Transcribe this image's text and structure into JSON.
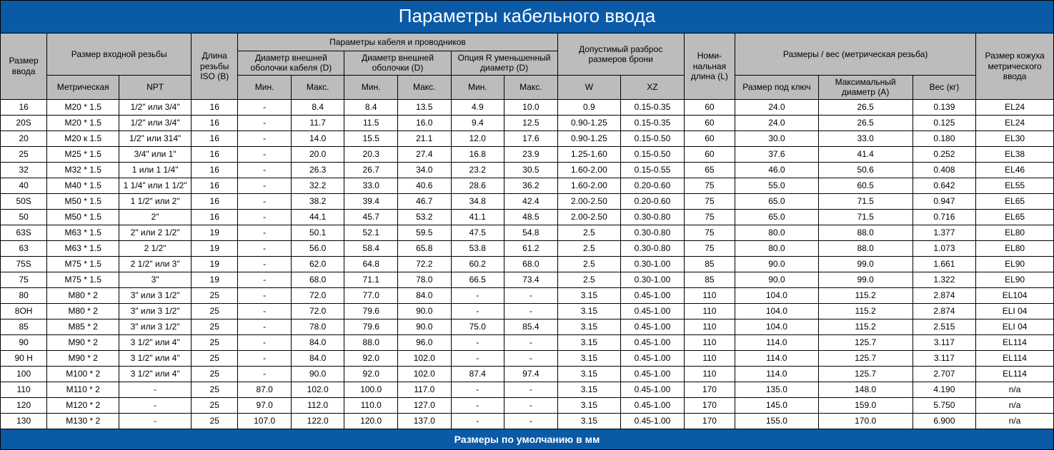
{
  "title": "Параметры кабельного ввода",
  "footer": "Размеры по умолчанию в мм",
  "colors": {
    "banner_bg": "#0b5aa8",
    "banner_text": "#ffffff",
    "header_bg": "#bcbcbc",
    "cell_bg": "#ffffff",
    "border": "#000000"
  },
  "col_widths_pct": [
    4.2,
    6.5,
    6.5,
    4.2,
    4.8,
    4.8,
    4.8,
    4.8,
    4.8,
    4.8,
    5.7,
    5.7,
    4.6,
    7.5,
    8.5,
    5.7,
    7.0
  ],
  "headers": {
    "size": "Размер ввода",
    "thread_size": "Размер входной резьбы",
    "thread_len": "Длина резьбы ISO (B)",
    "cable_params": "Параметры кабеля и проводников",
    "armor_range": "Допустимый разброс размеров брони",
    "nominal_len": "Номи-нальная длина (L)",
    "dims_weight": "Размеры / вес (метрическая резьба)",
    "casing_size": "Размер кожуха метрического ввода",
    "metric": "Метрическая",
    "npt": "NPT",
    "outer_d1": "Диаметр внешней оболочки кабеля (D)",
    "outer_d2": "Диаметр внешней оболочки (D)",
    "option_r": "Опция R уменьшенный диаметр (D)",
    "min": "Мин.",
    "max": "Макс.",
    "w": "W",
    "xz": "XZ",
    "key_size": "Размер под ключ",
    "max_dia": "Максимальный диаметр (A)",
    "weight": "Вес (кг)"
  },
  "rows": [
    [
      "16",
      "M20 * 1.5",
      "1/2\" или 3/4\"",
      "16",
      "-",
      "8.4",
      "8.4",
      "13.5",
      "4.9",
      "10.0",
      "0.9",
      "0.15-0.35",
      "60",
      "24.0",
      "26.5",
      "0.139",
      "EL24"
    ],
    [
      "20S",
      "M20 * 1.5",
      "1/2\" или 3/4\"",
      "16",
      "-",
      "11.7",
      "11.5",
      "16.0",
      "9.4",
      "12.5",
      "0.90-1.25",
      "0.15-0.35",
      "60",
      "24.0",
      "26.5",
      "0.125",
      "EL24"
    ],
    [
      "20",
      "M20 к 1.5",
      "1/2\" или 314\"",
      "16",
      "-",
      "14.0",
      "15.5",
      "21.1",
      "12.0",
      "17.6",
      "0.90-1.25",
      "0.15-0.50",
      "60",
      "30.0",
      "33.0",
      "0.180",
      "EL30"
    ],
    [
      "25",
      "M25 * 1.5",
      "3/4\" или 1\"",
      "16",
      "-",
      "20.0",
      "20.3",
      "27.4",
      "16.8",
      "23.9",
      "1.25-1.60",
      "0.15-0.50",
      "60",
      "37.6",
      "41.4",
      "0.252",
      "EL38"
    ],
    [
      "32",
      "M32 * 1.5",
      "1 или 1 1/4\"",
      "16",
      "-",
      "26.3",
      "26.7",
      "34.0",
      "23.2",
      "30.5",
      "1.60-2.00",
      "0.15-0.55",
      "65",
      "46.0",
      "50.6",
      "0.408",
      "EL46"
    ],
    [
      "40",
      "M40 * 1.5",
      "1 1/4\" или 1 1/2\"",
      "16",
      "-",
      "32.2",
      "33.0",
      "40.6",
      "28.6",
      "36.2",
      "1.60-2.00",
      "0.20-0.60",
      "75",
      "55.0",
      "60.5",
      "0.642",
      "EL55"
    ],
    [
      "50S",
      "M50 * 1.5",
      "1 1/2\" или 2\"",
      "16",
      "-",
      "38.2",
      "39.4",
      "46.7",
      "34.8",
      "42.4",
      "2.00-2.50",
      "0.20-0.60",
      "75",
      "65.0",
      "71.5",
      "0.947",
      "EL65"
    ],
    [
      "50",
      "M50 * 1.5",
      "2\"",
      "16",
      "-",
      "44.1",
      "45.7",
      "53.2",
      "41.1",
      "48.5",
      "2.00-2.50",
      "0.30-0.80",
      "75",
      "65.0",
      "71.5",
      "0.716",
      "EL65"
    ],
    [
      "63S",
      "M63 * 1.5",
      "2\" или 2 1/2\"",
      "19",
      "-",
      "50.1",
      "52.1",
      "59.5",
      "47.5",
      "54.8",
      "2.5",
      "0.30-0.80",
      "75",
      "80.0",
      "88.0",
      "1.377",
      "EL80"
    ],
    [
      "63",
      "M63 * 1.5",
      "2 1/2\"",
      "19",
      "-",
      "56.0",
      "58.4",
      "65.8",
      "53.8",
      "61.2",
      "2.5",
      "0.30-0.80",
      "75",
      "80.0",
      "88.0",
      "1.073",
      "EL80"
    ],
    [
      "75S",
      "M75 * 1.5",
      "2 1/2\" или 3\"",
      "19",
      "-",
      "62.0",
      "64.8",
      "72.2",
      "60.2",
      "68.0",
      "2.5",
      "0.30-1.00",
      "85",
      "90.0",
      "99.0",
      "1.661",
      "EL90"
    ],
    [
      "75",
      "M75 * 1.5",
      "3\"",
      "19",
      "-",
      "68.0",
      "71.1",
      "78.0",
      "66.5",
      "73.4",
      "2.5",
      "0.30-1.00",
      "85",
      "90.0",
      "99.0",
      "1.322",
      "EL90"
    ],
    [
      "80",
      "M80 * 2",
      "3\" или 3 1/2\"",
      "25",
      "-",
      "72.0",
      "77.0",
      "84.0",
      "-",
      "-",
      "3.15",
      "0.45-1.00",
      "110",
      "104.0",
      "115.2",
      "2.874",
      "EL104"
    ],
    [
      "8ОН",
      "M80 * 2",
      "3\" или 3 1/2\"",
      "25",
      "-",
      "72.0",
      "79.6",
      "90.0",
      "-",
      "-",
      "3.15",
      "0.45-1.00",
      "110",
      "104.0",
      "115.2",
      "2.874",
      "ELI 04"
    ],
    [
      "85",
      "M85 * 2",
      "3\" или 3 1/2\"",
      "25",
      "-",
      "78.0",
      "79.6",
      "90.0",
      "75.0",
      "85.4",
      "3.15",
      "0.45-1.00",
      "110",
      "104.0",
      "115.2",
      "2.515",
      "ELI 04"
    ],
    [
      "90",
      "M90 * 2",
      "3 1/2\" или 4\"",
      "25",
      "-",
      "84.0",
      "88.0",
      "96.0",
      "-",
      "-",
      "3.15",
      "0.45-1.00",
      "110",
      "114.0",
      "125.7",
      "3.117",
      "EL114"
    ],
    [
      "90 Н",
      "M90 * 2",
      "3 1/2\" или 4\"",
      "25",
      "-",
      "84.0",
      "92.0",
      "102.0",
      "-",
      "-",
      "3.15",
      "0.45-1.00",
      "110",
      "114.0",
      "125.7",
      "3.117",
      "EL114"
    ],
    [
      "100",
      "M100 * 2",
      "3 1/2\" или 4\"",
      "25",
      "-",
      "90.0",
      "92.0",
      "102.0",
      "87.4",
      "97.4",
      "3.15",
      "0.45-1.00",
      "110",
      "114.0",
      "125.7",
      "2.707",
      "EL114"
    ],
    [
      "110",
      "M110 * 2",
      "-",
      "25",
      "87.0",
      "102.0",
      "100.0",
      "117.0",
      "-",
      "-",
      "3.15",
      "0.45-1.00",
      "170",
      "135.0",
      "148.0",
      "4.190",
      "n/a"
    ],
    [
      "120",
      "M120 * 2",
      "-",
      "25",
      "97.0",
      "112.0",
      "110.0",
      "127.0",
      "-",
      "-",
      "3.15",
      "0.45-1.00",
      "170",
      "145.0",
      "159.0",
      "5.750",
      "n/a"
    ],
    [
      "130",
      "M130 * 2",
      "-",
      "25",
      "107.0",
      "122.0",
      "120.0",
      "137.0",
      "-",
      "-",
      "3.15",
      "0.45-1.00",
      "170",
      "155.0",
      "170.0",
      "6.900",
      "n/a"
    ]
  ]
}
